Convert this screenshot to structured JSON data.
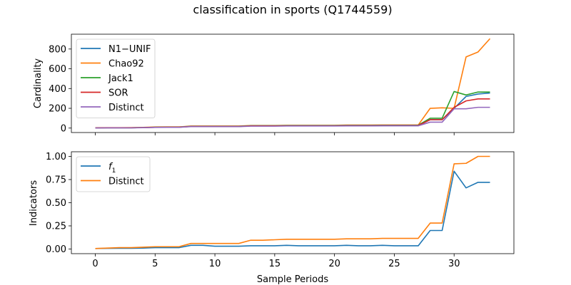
{
  "figure": {
    "title": "classification in sports (Q1744559)",
    "xlabel": "Sample Periods"
  },
  "chart_data": [
    {
      "type": "line",
      "title": "classification in sports (Q1744559)",
      "xlabel": "",
      "ylabel": "Cardinality",
      "xlim": [
        -2,
        35
      ],
      "ylim": [
        -45,
        950
      ],
      "xticks": [
        0,
        5,
        10,
        15,
        20,
        25,
        30
      ],
      "yticks": [
        0,
        200,
        400,
        600,
        800
      ],
      "legend": "top-left",
      "x": [
        0,
        1,
        2,
        3,
        4,
        5,
        6,
        7,
        8,
        9,
        10,
        11,
        12,
        13,
        14,
        15,
        16,
        17,
        18,
        19,
        20,
        21,
        22,
        23,
        24,
        25,
        26,
        27,
        28,
        29,
        30,
        31,
        32,
        33
      ],
      "series": [
        {
          "name": "N1−UNIF",
          "color": "#1f77b4",
          "values": [
            2,
            3,
            3,
            3,
            5,
            8,
            9,
            9,
            17,
            17,
            17,
            17,
            17,
            22,
            22,
            22,
            23,
            23,
            23,
            23,
            23,
            24,
            24,
            24,
            25,
            25,
            25,
            25,
            85,
            85,
            200,
            320,
            345,
            355
          ]
        },
        {
          "name": "Chao92",
          "color": "#ff7f0e",
          "values": [
            3,
            4,
            4,
            5,
            7,
            11,
            12,
            12,
            20,
            20,
            20,
            20,
            20,
            26,
            26,
            26,
            28,
            28,
            28,
            28,
            28,
            30,
            30,
            30,
            31,
            31,
            31,
            31,
            200,
            205,
            200,
            720,
            770,
            905
          ]
        },
        {
          "name": "Jack1",
          "color": "#2ca02c",
          "values": [
            2,
            3,
            3,
            3,
            5,
            9,
            10,
            10,
            19,
            19,
            19,
            19,
            19,
            24,
            24,
            24,
            26,
            26,
            26,
            26,
            26,
            28,
            28,
            28,
            29,
            29,
            29,
            29,
            100,
            100,
            370,
            335,
            365,
            365
          ]
        },
        {
          "name": "SOR",
          "color": "#d62728",
          "values": [
            2,
            3,
            3,
            3,
            5,
            8,
            9,
            9,
            17,
            17,
            17,
            17,
            17,
            22,
            22,
            22,
            23,
            23,
            23,
            23,
            23,
            25,
            25,
            25,
            26,
            26,
            26,
            26,
            85,
            85,
            210,
            275,
            295,
            295
          ]
        },
        {
          "name": "Distinct",
          "color": "#9467bd",
          "values": [
            1,
            2,
            2,
            2,
            4,
            7,
            8,
            8,
            15,
            15,
            15,
            15,
            15,
            19,
            19,
            19,
            21,
            21,
            21,
            21,
            21,
            22,
            22,
            22,
            23,
            23,
            23,
            23,
            60,
            60,
            195,
            195,
            210,
            210
          ]
        }
      ]
    },
    {
      "type": "line",
      "xlabel": "Sample Periods",
      "ylabel": "Indicators",
      "xlim": [
        -2,
        35
      ],
      "ylim": [
        -0.05,
        1.05
      ],
      "xticks": [
        0,
        5,
        10,
        15,
        20,
        25,
        30
      ],
      "yticks": [
        0.0,
        0.25,
        0.5,
        0.75,
        1.0
      ],
      "ytick_labels": [
        "0.00",
        "0.25",
        "0.50",
        "0.75",
        "1.00"
      ],
      "legend": "top-left",
      "x": [
        0,
        1,
        2,
        3,
        4,
        5,
        6,
        7,
        8,
        9,
        10,
        11,
        12,
        13,
        14,
        15,
        16,
        17,
        18,
        19,
        20,
        21,
        22,
        23,
        24,
        25,
        26,
        27,
        28,
        29,
        30,
        31,
        32,
        33
      ],
      "series": [
        {
          "name": "f1",
          "label_main": "f",
          "label_sub": "1",
          "color": "#1f77b4",
          "values": [
            0.005,
            0.007,
            0.008,
            0.008,
            0.01,
            0.015,
            0.015,
            0.015,
            0.04,
            0.04,
            0.03,
            0.03,
            0.03,
            0.035,
            0.035,
            0.035,
            0.04,
            0.035,
            0.035,
            0.035,
            0.035,
            0.04,
            0.035,
            0.035,
            0.04,
            0.035,
            0.035,
            0.035,
            0.2,
            0.2,
            0.84,
            0.66,
            0.72,
            0.72
          ]
        },
        {
          "name": "Distinct",
          "color": "#ff7f0e",
          "values": [
            0.005,
            0.01,
            0.015,
            0.015,
            0.02,
            0.025,
            0.025,
            0.025,
            0.06,
            0.06,
            0.06,
            0.06,
            0.06,
            0.095,
            0.095,
            0.1,
            0.105,
            0.105,
            0.105,
            0.105,
            0.105,
            0.11,
            0.11,
            0.11,
            0.115,
            0.115,
            0.115,
            0.115,
            0.28,
            0.28,
            0.92,
            0.925,
            1.0,
            1.0
          ]
        }
      ]
    }
  ]
}
